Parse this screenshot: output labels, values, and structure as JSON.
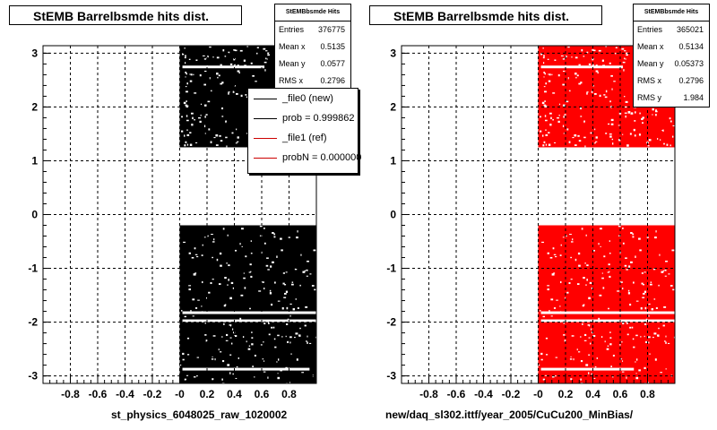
{
  "panels": [
    {
      "title": "StEMB Barrelbsmde hits dist.",
      "stats": {
        "name": "StEMBbsmde Hits",
        "rows": [
          {
            "key": "Entries",
            "value": "376775"
          },
          {
            "key": "Mean x",
            "value": "0.5135"
          },
          {
            "key": "Mean y",
            "value": "0.0577"
          },
          {
            "key": "RMS x",
            "value": "0.2796"
          }
        ]
      },
      "legend": [
        {
          "label": "_file0 (new)",
          "color": "#000000"
        },
        {
          "label": "prob = 0.999862",
          "color": "#000000"
        },
        {
          "label": "_file1 (ref)",
          "color": "#cc0000"
        },
        {
          "label": "probN = 0.000000",
          "color": "#cc0000"
        }
      ],
      "bottom_label": "st_physics_6048025_raw_1020002"
    },
    {
      "title": "StEMB Barrelbsmde hits dist.",
      "stats": {
        "name": "StEMBbsmde Hits",
        "rows": [
          {
            "key": "Entries",
            "value": "365021"
          },
          {
            "key": "Mean x",
            "value": "0.5134"
          },
          {
            "key": "Mean y",
            "value": "0.05373"
          },
          {
            "key": "RMS x",
            "value": "0.2796"
          },
          {
            "key": "RMS y",
            "value": "1.984"
          }
        ]
      },
      "bottom_label": "new/daq_sl302.ittf/year_2005/CuCu200_MinBias/"
    }
  ],
  "chart_data": [
    {
      "type": "heatmap",
      "xlim": [
        -1,
        1
      ],
      "ylim": [
        -3.14,
        3.14
      ],
      "x_ticks": [
        "-0.8",
        "-0.6",
        "-0.4",
        "-0.2",
        "-0",
        "0.2",
        "0.4",
        "0.6",
        "0.8"
      ],
      "y_ticks": [
        "3",
        "2",
        "1",
        "0",
        "-1",
        "-2",
        "-3"
      ],
      "grid": true,
      "color": "#000000",
      "regions": [
        {
          "x": [
            0,
            1
          ],
          "y": [
            1.25,
            3.14
          ]
        },
        {
          "x": [
            0,
            1
          ],
          "y": [
            -3.14,
            -0.2
          ]
        }
      ]
    },
    {
      "type": "heatmap",
      "xlim": [
        -1,
        1
      ],
      "ylim": [
        -3.14,
        3.14
      ],
      "x_ticks": [
        "-0.8",
        "-0.6",
        "-0.4",
        "-0.2",
        "-0",
        "0.2",
        "0.4",
        "0.6",
        "0.8"
      ],
      "y_ticks": [
        "3",
        "2",
        "1",
        "0",
        "-1",
        "-2",
        "-3"
      ],
      "grid": true,
      "color": "#ff0000",
      "regions": [
        {
          "x": [
            0,
            1
          ],
          "y": [
            1.25,
            3.14
          ]
        },
        {
          "x": [
            0,
            1
          ],
          "y": [
            -3.14,
            -0.2
          ]
        }
      ]
    }
  ]
}
